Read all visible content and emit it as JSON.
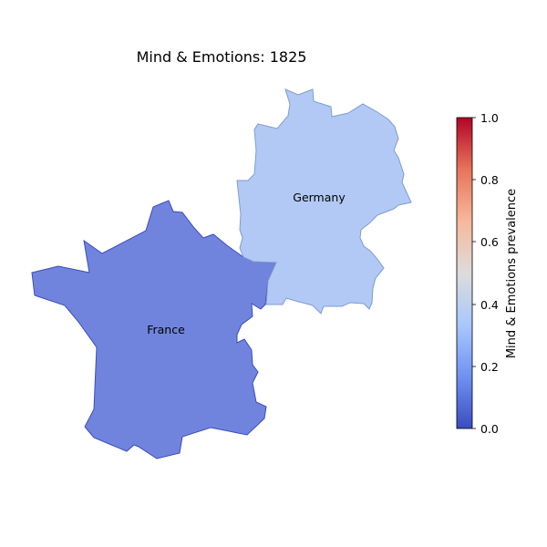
{
  "map": {
    "title": "Mind & Emotions: 1825",
    "countries": [
      {
        "name": "France",
        "value": 0.12,
        "fill": "#7184dd",
        "stroke": "#3a4cc0"
      },
      {
        "name": "Germany",
        "value": 0.27,
        "fill": "#b1c9f4",
        "stroke": "#7f9bd4"
      }
    ]
  },
  "colorbar": {
    "label": "Mind & Emotions prevalence",
    "ticks": [
      "0.0",
      "0.2",
      "0.4",
      "0.6",
      "0.8",
      "1.0"
    ],
    "colormap": "coolwarm",
    "colors": [
      "#3b4cc0",
      "#6f92f3",
      "#aac7fd",
      "#dddcdc",
      "#f7b89c",
      "#e7745b",
      "#b40426"
    ],
    "range": [
      0,
      1
    ]
  }
}
